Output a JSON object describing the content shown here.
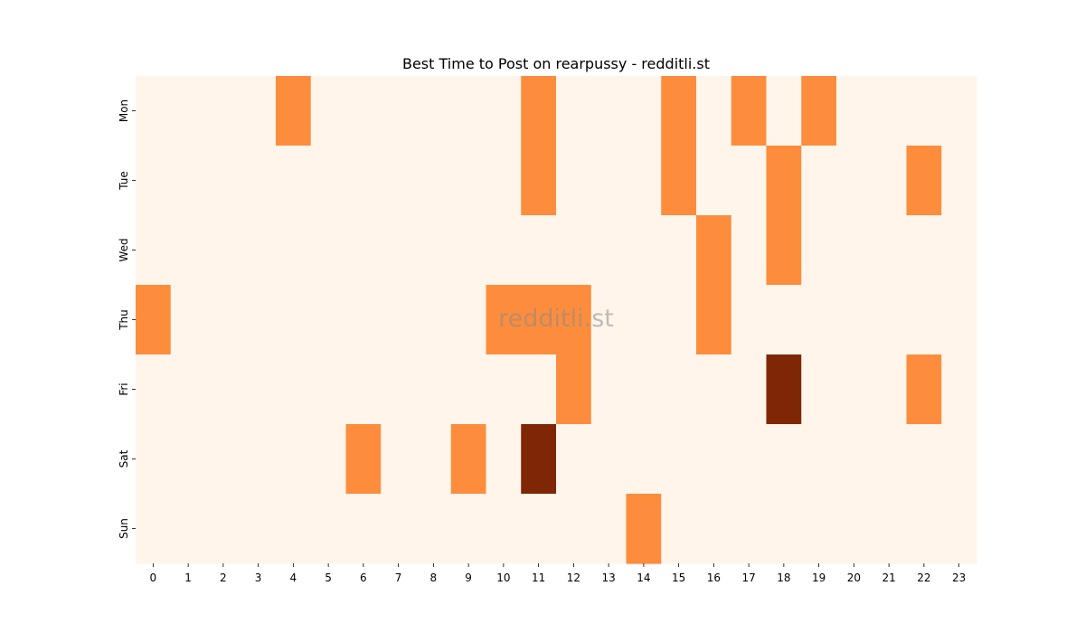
{
  "chart_data": {
    "type": "heatmap",
    "title": "Best Time to Post on rearpussy - redditli.st",
    "watermark": "redditli.st",
    "xlabel": "",
    "ylabel": "",
    "x_categories": [
      "0",
      "1",
      "2",
      "3",
      "4",
      "5",
      "6",
      "7",
      "8",
      "9",
      "10",
      "11",
      "12",
      "13",
      "14",
      "15",
      "16",
      "17",
      "18",
      "19",
      "20",
      "21",
      "22",
      "23"
    ],
    "y_categories": [
      "Mon",
      "Tue",
      "Wed",
      "Thu",
      "Fri",
      "Sat",
      "Sun"
    ],
    "values": [
      [
        0,
        0,
        0,
        0,
        1,
        0,
        0,
        0,
        0,
        0,
        0,
        1,
        0,
        0,
        0,
        1,
        0,
        1,
        0,
        1,
        0,
        0,
        0,
        0
      ],
      [
        0,
        0,
        0,
        0,
        0,
        0,
        0,
        0,
        0,
        0,
        0,
        1,
        0,
        0,
        0,
        1,
        0,
        0,
        1,
        0,
        0,
        0,
        1,
        0
      ],
      [
        0,
        0,
        0,
        0,
        0,
        0,
        0,
        0,
        0,
        0,
        0,
        0,
        0,
        0,
        0,
        0,
        1,
        0,
        1,
        0,
        0,
        0,
        0,
        0
      ],
      [
        1,
        0,
        0,
        0,
        0,
        0,
        0,
        0,
        0,
        0,
        1,
        1,
        1,
        0,
        0,
        0,
        1,
        0,
        0,
        0,
        0,
        0,
        0,
        0
      ],
      [
        0,
        0,
        0,
        0,
        0,
        0,
        0,
        0,
        0,
        0,
        0,
        0,
        1,
        0,
        0,
        0,
        0,
        0,
        2,
        0,
        0,
        0,
        1,
        0
      ],
      [
        0,
        0,
        0,
        0,
        0,
        0,
        1,
        0,
        0,
        1,
        0,
        2,
        0,
        0,
        0,
        0,
        0,
        0,
        0,
        0,
        0,
        0,
        0,
        0
      ],
      [
        0,
        0,
        0,
        0,
        0,
        0,
        0,
        0,
        0,
        0,
        0,
        0,
        0,
        0,
        1,
        0,
        0,
        0,
        0,
        0,
        0,
        0,
        0,
        0
      ]
    ],
    "value_range": [
      0,
      2
    ],
    "colors": {
      "0": "#fff5eb",
      "1": "#fd8d3c",
      "2": "#7f2704"
    },
    "colormap": "Oranges",
    "colorbar": false,
    "grid": false,
    "legend": "none"
  }
}
